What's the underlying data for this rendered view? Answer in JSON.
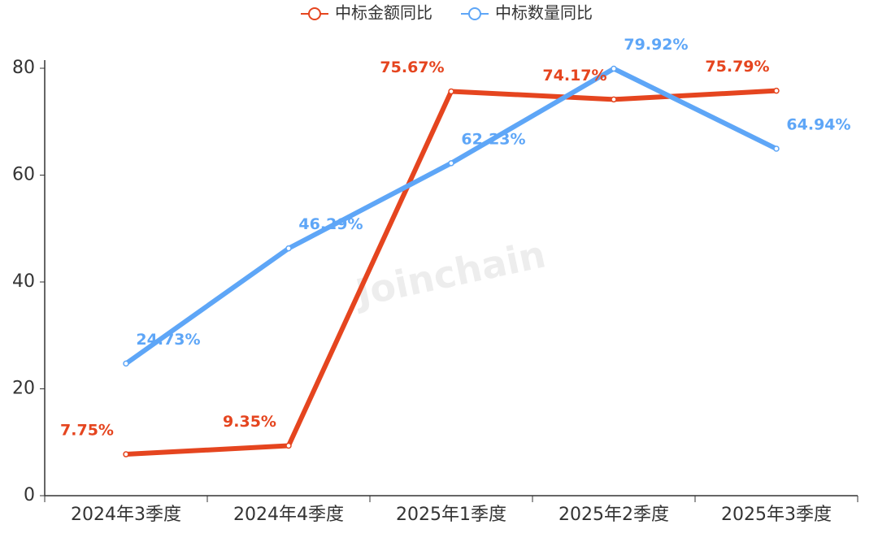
{
  "chart_data": {
    "type": "line",
    "categories": [
      "2024年3季度",
      "2024年4季度",
      "2025年1季度",
      "2025年2季度",
      "2025年3季度"
    ],
    "series": [
      {
        "name": "中标金额同比",
        "color": "#e5451f",
        "values": [
          7.75,
          9.35,
          75.67,
          74.17,
          75.79
        ],
        "value_labels": [
          "7.75%",
          "9.35%",
          "75.67%",
          "74.17%",
          "75.79%"
        ]
      },
      {
        "name": "中标数量同比",
        "color": "#5ea6f7",
        "values": [
          24.73,
          46.29,
          62.23,
          79.92,
          64.94
        ],
        "value_labels": [
          "24.73%",
          "46.29%",
          "62.23%",
          "79.92%",
          "64.94%"
        ]
      }
    ],
    "ylim": [
      0,
      80
    ],
    "yticks": [
      0,
      20,
      40,
      60,
      80
    ],
    "grid": false,
    "legend": "top",
    "watermark": "Joinchain"
  }
}
